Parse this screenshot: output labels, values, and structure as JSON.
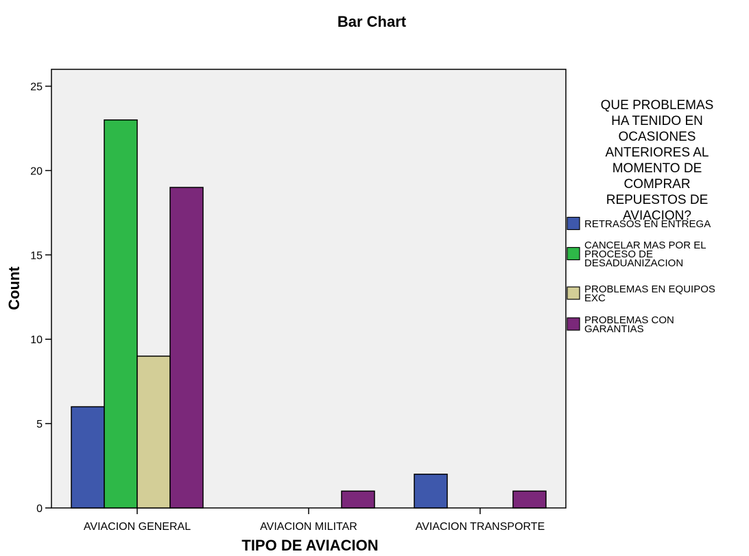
{
  "chart_data": {
    "type": "bar",
    "title": "Bar Chart",
    "xlabel": "TIPO DE AVIACION",
    "ylabel": "Count",
    "ylim": [
      0,
      26
    ],
    "yticks": [
      0,
      5,
      10,
      15,
      20,
      25
    ],
    "grid": false,
    "categories": [
      "AVIACION GENERAL",
      "AVIACION MILITAR",
      "AVIACION TRANSPORTE"
    ],
    "legend": {
      "placement": "right",
      "title_lines": [
        "QUE PROBLEMAS",
        "HA TENIDO EN",
        "OCASIONES",
        "ANTERIORES AL",
        "MOMENTO DE",
        "COMPRAR",
        "REPUESTOS DE",
        "AVIACION?"
      ]
    },
    "series": [
      {
        "name": "RETRASOS EN ENTREGA",
        "name_lines": [
          "RETRASOS EN ENTREGA"
        ],
        "color": "#3e58ac",
        "values": [
          6,
          0,
          2
        ]
      },
      {
        "name": "CANCELAR MAS POR EL PROCESO DE DESADUANIZACION",
        "name_lines": [
          "CANCELAR MAS POR EL",
          "PROCESO DE",
          "DESADUANIZACION"
        ],
        "color": "#2eb848",
        "values": [
          23,
          0,
          0
        ]
      },
      {
        "name": "PROBLEMAS EN EQUIPOS EXC",
        "name_lines": [
          "PROBLEMAS EN EQUIPOS",
          "EXC"
        ],
        "color": "#d3ce97",
        "values": [
          9,
          0,
          0
        ]
      },
      {
        "name": "PROBLEMAS CON GARANTIAS",
        "name_lines": [
          "PROBLEMAS CON",
          "GARANTIAS"
        ],
        "color": "#7b287a",
        "values": [
          19,
          1,
          1
        ]
      }
    ]
  }
}
